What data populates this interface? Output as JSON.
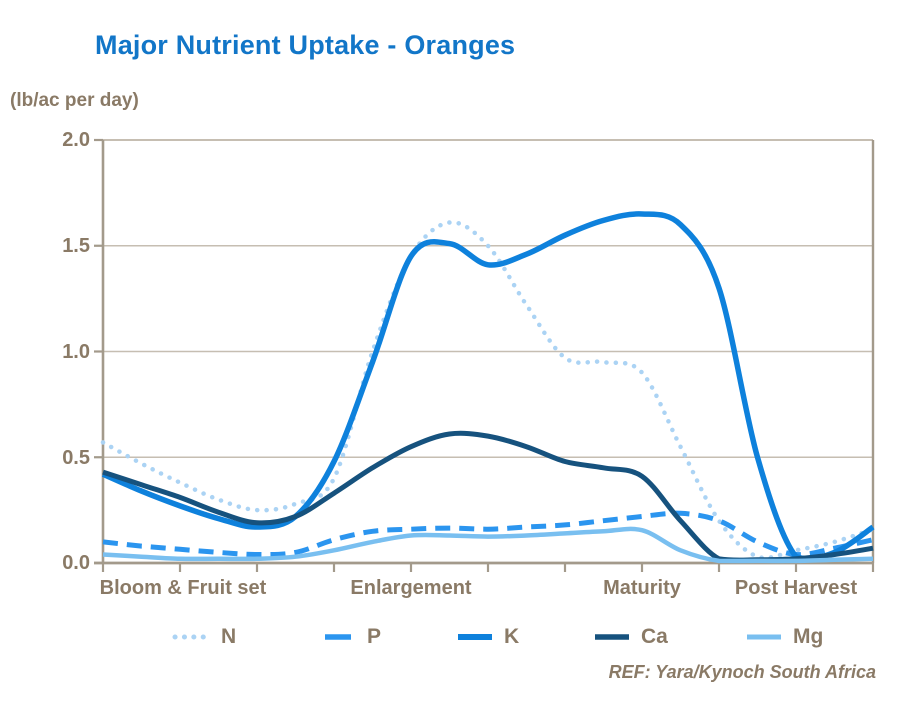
{
  "header": {
    "title": "Major Nutrient Uptake - Oranges",
    "title_color": "#1276c8"
  },
  "axis_text_color": "#8a7a66",
  "grid_color": "#c6beb2",
  "axis_line_color": "#a39a8b",
  "footer": {
    "ref_text": "REF: Yara/Kynoch South Africa"
  },
  "chart_data": {
    "type": "line",
    "title": "Major Nutrient Uptake - Oranges",
    "ylabel": "(lb/ac per day)",
    "ylim": [
      0,
      2.0
    ],
    "ytick_labels": [
      "2.0",
      "1.5",
      "1.0",
      "0.5",
      "0.0"
    ],
    "ytick_values": [
      2.0,
      1.5,
      1.0,
      0.5,
      0.0
    ],
    "x_range": [
      0,
      10
    ],
    "x_tick_spacing": 1,
    "x_sample_step": 0.5,
    "grid": "horizontal",
    "legend_position": "bottom",
    "x_category_labels": [
      {
        "label": "Bloom & Fruit set",
        "x": 1
      },
      {
        "label": "Enlargement",
        "x": 4
      },
      {
        "label": "Maturity",
        "x": 7
      },
      {
        "label": "Post Harvest",
        "x": 9
      }
    ],
    "series": [
      {
        "name": "N",
        "color": "#abd3f4",
        "style": "dotted",
        "width": 4.5,
        "values": [
          0.57,
          0.47,
          0.38,
          0.3,
          0.25,
          0.28,
          0.4,
          1.0,
          1.45,
          1.61,
          1.5,
          1.22,
          0.97,
          0.95,
          0.9,
          0.55,
          0.2,
          0.03,
          0.06,
          0.1,
          0.16
        ]
      },
      {
        "name": "P",
        "color": "#2b95ef",
        "style": "dashed",
        "width": 5,
        "values": [
          0.1,
          0.08,
          0.065,
          0.05,
          0.04,
          0.05,
          0.11,
          0.15,
          0.16,
          0.165,
          0.16,
          0.17,
          0.18,
          0.2,
          0.22,
          0.235,
          0.2,
          0.1,
          0.04,
          0.07,
          0.11
        ]
      },
      {
        "name": "K",
        "color": "#0e81dc",
        "style": "solid",
        "width": 5.5,
        "values": [
          0.42,
          0.34,
          0.27,
          0.21,
          0.17,
          0.22,
          0.48,
          0.95,
          1.45,
          1.51,
          1.41,
          1.46,
          1.55,
          1.62,
          1.65,
          1.6,
          1.3,
          0.5,
          0.03,
          0.05,
          0.17
        ]
      },
      {
        "name": "Ca",
        "color": "#16527e",
        "style": "solid",
        "width": 5,
        "values": [
          0.43,
          0.37,
          0.31,
          0.24,
          0.19,
          0.22,
          0.33,
          0.45,
          0.55,
          0.61,
          0.6,
          0.55,
          0.48,
          0.45,
          0.41,
          0.2,
          0.02,
          0.015,
          0.02,
          0.04,
          0.07
        ]
      },
      {
        "name": "Mg",
        "color": "#79bff0",
        "style": "solid",
        "width": 4.5,
        "values": [
          0.04,
          0.03,
          0.02,
          0.02,
          0.02,
          0.03,
          0.06,
          0.1,
          0.13,
          0.13,
          0.125,
          0.13,
          0.14,
          0.15,
          0.155,
          0.06,
          0.01,
          0.01,
          0.01,
          0.015,
          0.02
        ]
      }
    ]
  }
}
